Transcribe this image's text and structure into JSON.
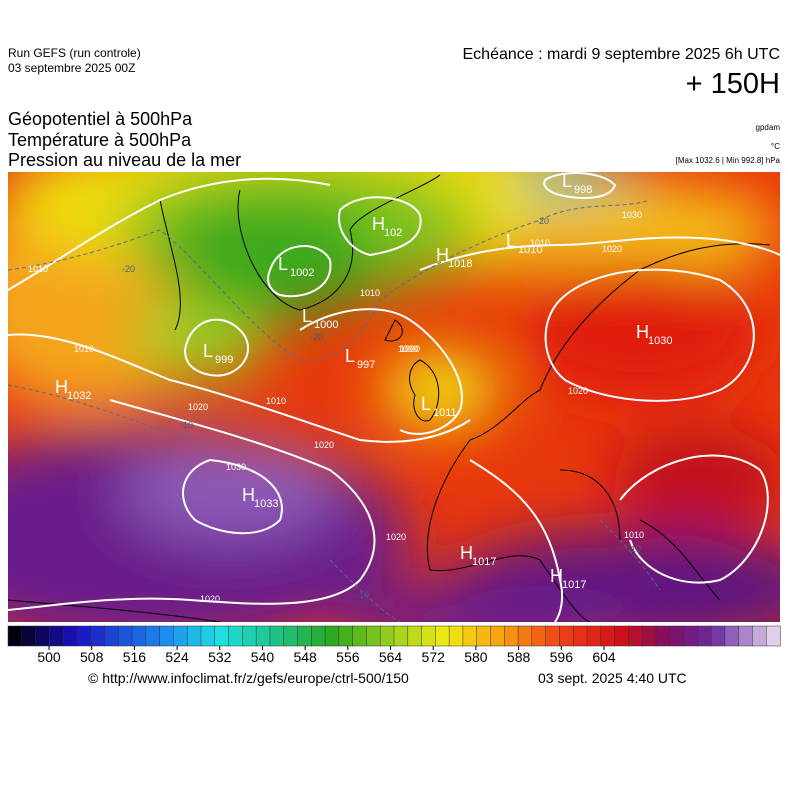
{
  "header": {
    "run": "Run GEFS (run controle)",
    "date": "03 septembre 2025 00Z",
    "echeance": "Echéance : mardi 9 septembre 2025 6h UTC",
    "lead": "+ 150H"
  },
  "titles": [
    "Géopotentiel à 500hPa",
    "Température à 500hPa",
    "Pression au niveau de la mer"
  ],
  "units": {
    "geopotential": "gpdam",
    "temperature": "°C",
    "pressure": "[Max 1032.6 | Min 992.8] hPa"
  },
  "centers": [
    {
      "letter": "L",
      "value": "998"
    },
    {
      "letter": "H",
      "value": "102"
    },
    {
      "letter": "L",
      "value": "1002"
    },
    {
      "letter": "H",
      "value": "1018"
    },
    {
      "letter": "L",
      "value": "1010"
    },
    {
      "letter": "L",
      "value": "1000"
    },
    {
      "letter": "L",
      "value": "999"
    },
    {
      "letter": "L",
      "value": "997"
    },
    {
      "letter": "H",
      "value": "1030"
    },
    {
      "letter": "H",
      "value": "1032"
    },
    {
      "letter": "L",
      "value": "1011"
    },
    {
      "letter": "H",
      "value": "1033"
    },
    {
      "letter": "H",
      "value": "1017"
    },
    {
      "letter": "H",
      "value": "1017"
    }
  ],
  "isobar_labels": [
    "1010",
    "1020",
    "1030",
    "1000",
    "1010",
    "1020",
    "1020",
    "1030",
    "1020",
    "1010",
    "1020",
    "1010",
    "1000",
    "1010",
    "1020",
    "1010"
  ],
  "temperature_labels": [
    "-20",
    "-20",
    "-20",
    "-10",
    "-10",
    "-10"
  ],
  "colorbar": {
    "ticks": [
      500,
      508,
      516,
      524,
      532,
      540,
      548,
      556,
      564,
      572,
      580,
      588,
      596,
      604
    ]
  },
  "footer": {
    "source": "© http://www.infoclimat.fr/z/gefs/europe/ctrl-500/150",
    "generated": "03 sept. 2025  4:40 UTC"
  }
}
